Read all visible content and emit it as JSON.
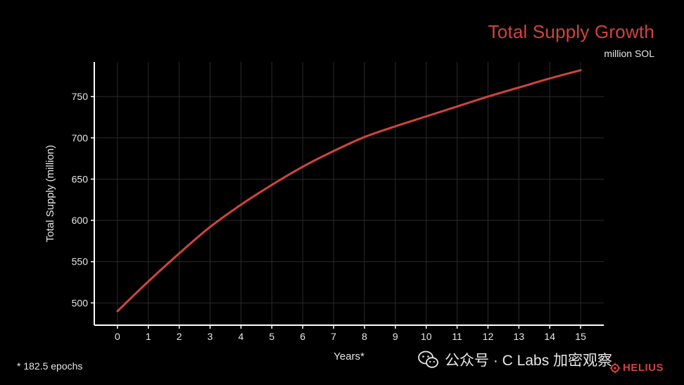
{
  "header": {
    "title": "Total Supply Growth",
    "subtitle": "million SOL"
  },
  "footnote": "* 182.5 epochs",
  "watermark": {
    "text": "公众号 · C Labs 加密观察",
    "icon": "wechat-icon"
  },
  "brand": {
    "text": "HELIUS",
    "icon": "helius-logo-icon"
  },
  "colors": {
    "line": "#d0443e",
    "title": "#d0443e",
    "axis": "#ffffff",
    "grid": "#2a2a2a",
    "background": "#000000"
  },
  "chart_data": {
    "type": "line",
    "title": "Total Supply Growth",
    "subtitle": "million SOL",
    "xlabel": "Years*",
    "ylabel": "Total Supply (million)",
    "xlim": [
      -0.75,
      15.75
    ],
    "ylim": [
      473,
      792
    ],
    "xticks": [
      0,
      1,
      2,
      3,
      4,
      5,
      6,
      7,
      8,
      9,
      10,
      11,
      12,
      13,
      14,
      15
    ],
    "yticks": [
      500,
      550,
      600,
      650,
      700,
      750
    ],
    "grid": true,
    "x": [
      0,
      1,
      2,
      3,
      4,
      5,
      6,
      7,
      8,
      9,
      10,
      11,
      12,
      13,
      14,
      15
    ],
    "series": [
      {
        "values": [
          490,
          526,
          560,
          592,
          619,
          643,
          665,
          684,
          701,
          714,
          726,
          738,
          750,
          761,
          772,
          782
        ]
      }
    ]
  }
}
